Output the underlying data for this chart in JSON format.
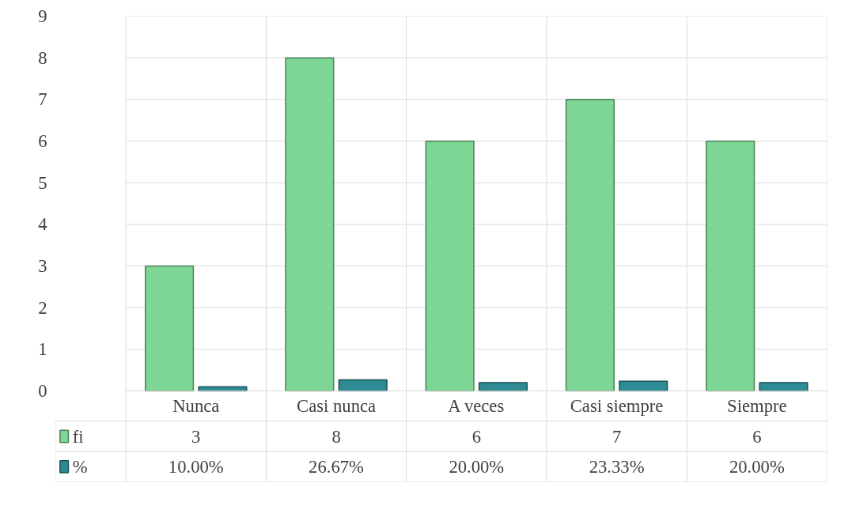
{
  "chart_data": {
    "type": "bar",
    "categories": [
      "Nunca",
      "Casi nunca",
      "A veces",
      "Casi siempre",
      "Siempre"
    ],
    "series": [
      {
        "name": "fi",
        "color": "#7dd695",
        "values": [
          3,
          8,
          6,
          7,
          6
        ],
        "value_labels": [
          "3",
          "8",
          "6",
          "7",
          "6"
        ]
      },
      {
        "name": "%",
        "color": "#2e8b93",
        "values": [
          0.1,
          0.2667,
          0.2,
          0.2333,
          0.2
        ],
        "value_labels": [
          "10.00%",
          "26.67%",
          "20.00%",
          "23.33%",
          "20.00%"
        ]
      }
    ],
    "ylim": [
      0,
      9
    ],
    "yticks": [
      0,
      1,
      2,
      3,
      4,
      5,
      6,
      7,
      8,
      9
    ],
    "grid": true,
    "legend": "bottom"
  }
}
